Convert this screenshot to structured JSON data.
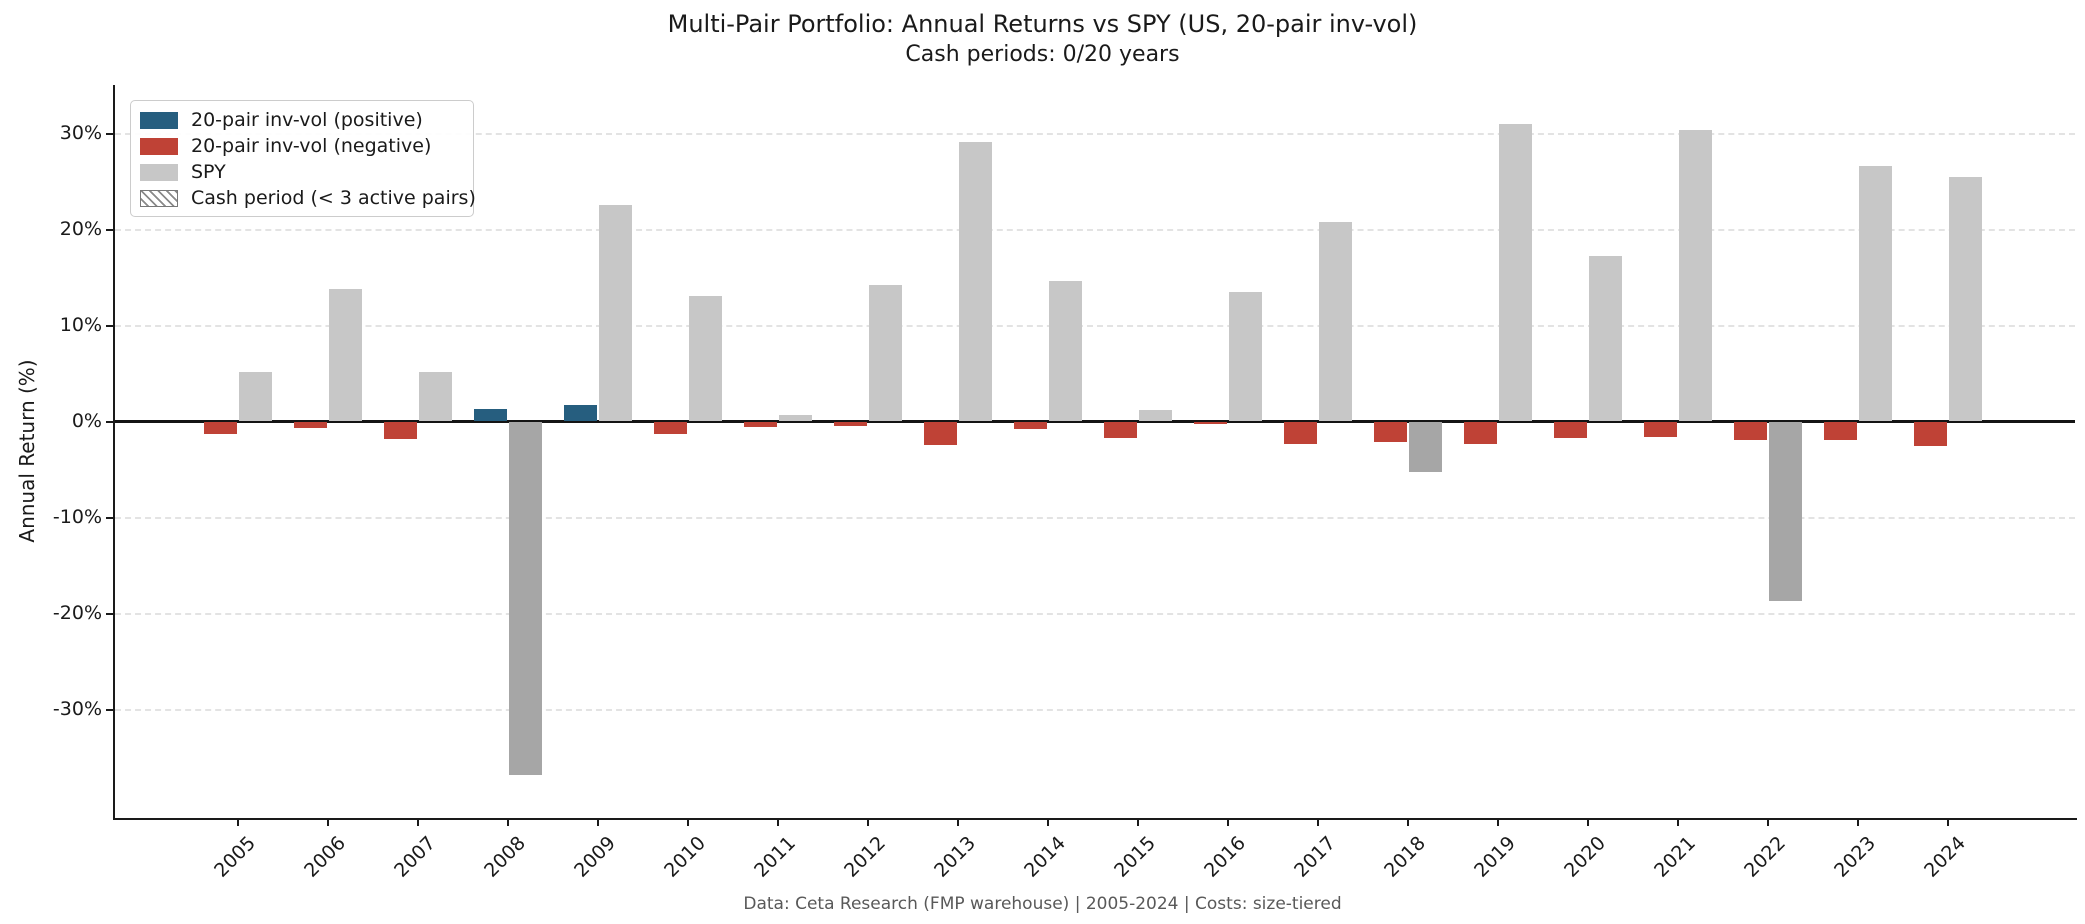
{
  "title": "Multi-Pair Portfolio: Annual Returns vs SPY (US, 20-pair inv-vol)",
  "subtitle": "Cash periods: 0/20 years",
  "footer": "Data: Ceta Research (FMP warehouse) | 2005-2024 | Costs: size-tiered",
  "y_axis": {
    "label": "Annual Return (%)",
    "ticks": [
      {
        "value": 30,
        "label": "30%"
      },
      {
        "value": 20,
        "label": "20%"
      },
      {
        "value": 10,
        "label": "10%"
      },
      {
        "value": 0,
        "label": "0%"
      },
      {
        "value": -10,
        "label": "-10%"
      },
      {
        "value": -20,
        "label": "-20%"
      },
      {
        "value": -30,
        "label": "-30%"
      }
    ]
  },
  "legend": {
    "items": [
      {
        "label": "20-pair inv-vol (positive)",
        "swatch": "solid",
        "color": "#265e7f"
      },
      {
        "label": "20-pair inv-vol (negative)",
        "swatch": "solid",
        "color": "#bf4236"
      },
      {
        "label": "SPY",
        "swatch": "solid",
        "color": "#c7c7c7"
      },
      {
        "label": "Cash period (< 3 active pairs)",
        "swatch": "hatch",
        "color": "#8a8a8a"
      }
    ]
  },
  "colors": {
    "strategy_positive": "#265e7f",
    "strategy_negative": "#bf4236",
    "spy_positive": "#c7c7c7",
    "spy_negative": "#a6a6a6",
    "grid": "#e3e3e3",
    "axis": "#1a1a1a",
    "zero_line": "#141414",
    "footer_text": "#595959",
    "legend_border": "#cccccc"
  },
  "chart_data": {
    "type": "bar",
    "title": "Multi-Pair Portfolio: Annual Returns vs SPY (US, 20-pair inv-vol)",
    "subtitle": "Cash periods: 0/20 years",
    "xlabel": "",
    "ylabel": "Annual Return (%)",
    "ylim": [
      -41.3,
      35
    ],
    "ytick_values": [
      30,
      20,
      10,
      0,
      -10,
      -20,
      -30
    ],
    "grid": "horizontal-dashed",
    "legend_position": "upper-left",
    "categories": [
      "2005",
      "2006",
      "2007",
      "2008",
      "2009",
      "2010",
      "2011",
      "2012",
      "2013",
      "2014",
      "2015",
      "2016",
      "2017",
      "2018",
      "2019",
      "2020",
      "2021",
      "2022",
      "2023",
      "2024"
    ],
    "series": [
      {
        "name": "20-pair inv-vol",
        "values": [
          -1.3,
          -0.7,
          -1.8,
          1.3,
          1.7,
          -1.3,
          -0.6,
          -0.5,
          -2.4,
          -0.8,
          -1.7,
          -0.3,
          -2.3,
          -2.1,
          -2.3,
          -1.7,
          -1.6,
          -1.9,
          -1.9,
          -2.6
        ]
      },
      {
        "name": "SPY",
        "values": [
          5.2,
          13.8,
          5.2,
          -36.8,
          22.6,
          13.1,
          0.7,
          14.2,
          29.1,
          14.6,
          1.2,
          13.5,
          20.8,
          -5.3,
          31.0,
          17.2,
          30.4,
          -18.7,
          26.6,
          25.5
        ]
      }
    ],
    "cash_period_years": []
  }
}
